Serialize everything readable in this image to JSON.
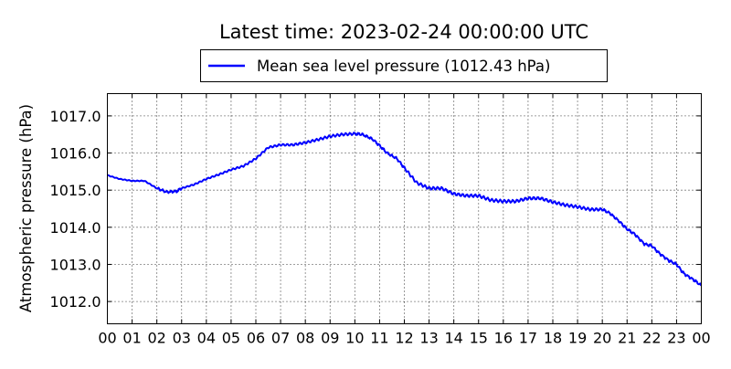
{
  "chart_data": {
    "type": "line",
    "title": "Latest time: 2023-02-24 00:00:00 UTC",
    "xlabel": "",
    "ylabel": "Atmospheric pressure (hPa)",
    "x_tick_labels": [
      "00",
      "01",
      "02",
      "03",
      "04",
      "05",
      "06",
      "07",
      "08",
      "09",
      "10",
      "11",
      "12",
      "13",
      "14",
      "15",
      "16",
      "17",
      "18",
      "19",
      "20",
      "21",
      "22",
      "23",
      "00"
    ],
    "y_ticks": [
      1012.0,
      1013.0,
      1014.0,
      1015.0,
      1016.0,
      1017.0
    ],
    "y_tick_labels": [
      "1012.0",
      "1013.0",
      "1014.0",
      "1015.0",
      "1016.0",
      "1017.0"
    ],
    "xlim": [
      0,
      24
    ],
    "ylim": [
      1011.4,
      1017.6
    ],
    "grid": true,
    "legend": "top-center",
    "series": [
      {
        "name": "Mean sea level pressure (1012.43 hPa)",
        "color": "#0000ff",
        "x": [
          0.0,
          0.5,
          1.0,
          1.5,
          2.0,
          2.4,
          2.8,
          3.0,
          3.5,
          4.0,
          4.5,
          5.0,
          5.5,
          6.0,
          6.5,
          7.0,
          7.5,
          8.0,
          8.5,
          9.0,
          9.5,
          10.0,
          10.3,
          10.7,
          11.0,
          11.3,
          11.7,
          12.0,
          12.5,
          13.0,
          13.5,
          14.0,
          14.5,
          15.0,
          15.5,
          16.0,
          16.5,
          17.0,
          17.5,
          18.0,
          18.5,
          19.0,
          19.5,
          20.0,
          20.3,
          20.7,
          21.0,
          21.3,
          21.7,
          22.0,
          22.3,
          22.7,
          23.0,
          23.3,
          23.7,
          24.0
        ],
        "y": [
          1015.4,
          1015.3,
          1015.25,
          1015.25,
          1015.05,
          1014.95,
          1014.97,
          1015.05,
          1015.15,
          1015.3,
          1015.42,
          1015.55,
          1015.65,
          1015.85,
          1016.15,
          1016.22,
          1016.22,
          1016.28,
          1016.36,
          1016.45,
          1016.5,
          1016.52,
          1016.5,
          1016.38,
          1016.2,
          1016.0,
          1015.85,
          1015.6,
          1015.2,
          1015.05,
          1015.05,
          1014.9,
          1014.85,
          1014.85,
          1014.73,
          1014.7,
          1014.7,
          1014.78,
          1014.78,
          1014.68,
          1014.6,
          1014.55,
          1014.48,
          1014.48,
          1014.38,
          1014.15,
          1013.95,
          1013.82,
          1013.55,
          1013.5,
          1013.3,
          1013.1,
          1013.0,
          1012.75,
          1012.58,
          1012.43
        ]
      }
    ]
  }
}
